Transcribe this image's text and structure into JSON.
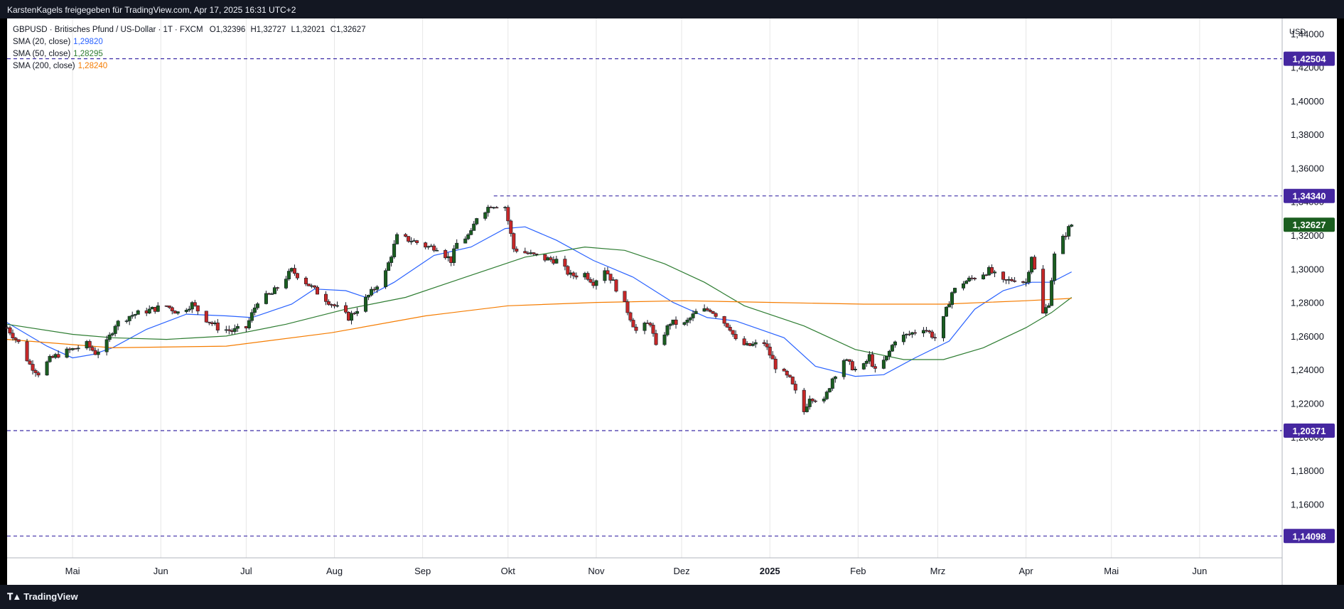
{
  "header": {
    "text": "KarstenKagels freigegeben für TradingView.com, Apr 17, 2025 16:31 UTC+2"
  },
  "legend": {
    "symbol": "GBPUSD · Britisches Pfund / US-Dollar · 1T · FXCM",
    "open": "O1,32396",
    "high": "H1,32727",
    "low": "L1,32021",
    "close": "C1,32627",
    "sma20_label": "SMA (20, close)",
    "sma20_value": "1,29820",
    "sma50_label": "SMA (50, close)",
    "sma50_value": "1,28295",
    "sma200_label": "SMA (200, close)",
    "sma200_value": "1,28240"
  },
  "footer": {
    "logo_text": "TradingView",
    "logo_icon": "tradingview-logo-icon"
  },
  "chart_data": {
    "type": "candlestick",
    "symbol": "GBPUSD",
    "interval": "1T",
    "y_unit": "USD",
    "ylim": [
      1.128,
      1.449
    ],
    "y_ticks": [
      "1,44000",
      "1,42000",
      "1,40000",
      "1,38000",
      "1,36000",
      "1,34000",
      "1,32000",
      "1,30000",
      "1,28000",
      "1,26000",
      "1,24000",
      "1,22000",
      "1,20000",
      "1,18000",
      "1,16000",
      "1,14000"
    ],
    "x_range": [
      "2024-04-08",
      "2025-06-30"
    ],
    "x_ticks": [
      {
        "label": "Mai",
        "date": "2024-05-01",
        "bold": false
      },
      {
        "label": "Jun",
        "date": "2024-06-01",
        "bold": false
      },
      {
        "label": "Jul",
        "date": "2024-07-01",
        "bold": false
      },
      {
        "label": "Aug",
        "date": "2024-08-01",
        "bold": false
      },
      {
        "label": "Sep",
        "date": "2024-09-01",
        "bold": false
      },
      {
        "label": "Okt",
        "date": "2024-10-01",
        "bold": false
      },
      {
        "label": "Nov",
        "date": "2024-11-01",
        "bold": false
      },
      {
        "label": "Dez",
        "date": "2024-12-01",
        "bold": false
      },
      {
        "label": "2025",
        "date": "2025-01-01",
        "bold": true
      },
      {
        "label": "Feb",
        "date": "2025-02-01",
        "bold": false
      },
      {
        "label": "Mrz",
        "date": "2025-03-01",
        "bold": false
      },
      {
        "label": "Apr",
        "date": "2025-04-01",
        "bold": false
      },
      {
        "label": "Mai",
        "date": "2025-05-01",
        "bold": false
      },
      {
        "label": "Jun",
        "date": "2025-06-01",
        "bold": false
      }
    ],
    "horizontal_lines": [
      {
        "value": 1.42504,
        "label": "1,42504",
        "start": "2024-04-08"
      },
      {
        "value": 1.3434,
        "label": "1,34340",
        "start": "2024-09-26"
      },
      {
        "value": 1.20371,
        "label": "1,20371",
        "start": "2024-04-08"
      },
      {
        "value": 1.14098,
        "label": "1,14098",
        "start": "2024-04-08"
      }
    ],
    "last_price": {
      "value": 1.32627,
      "label": "1,32627"
    },
    "close_series": [
      [
        "2024-04-08",
        1.265
      ],
      [
        "2024-04-12",
        1.256
      ],
      [
        "2024-04-16",
        1.243
      ],
      [
        "2024-04-19",
        1.238
      ],
      [
        "2024-04-23",
        1.246
      ],
      [
        "2024-04-26",
        1.249
      ],
      [
        "2024-05-01",
        1.252
      ],
      [
        "2024-05-06",
        1.255
      ],
      [
        "2024-05-09",
        1.25
      ],
      [
        "2024-05-13",
        1.256
      ],
      [
        "2024-05-16",
        1.267
      ],
      [
        "2024-05-21",
        1.272
      ],
      [
        "2024-05-27",
        1.275
      ],
      [
        "2024-06-03",
        1.278
      ],
      [
        "2024-06-07",
        1.274
      ],
      [
        "2024-06-12",
        1.279
      ],
      [
        "2024-06-17",
        1.27
      ],
      [
        "2024-06-21",
        1.265
      ],
      [
        "2024-06-26",
        1.263
      ],
      [
        "2024-07-01",
        1.265
      ],
      [
        "2024-07-05",
        1.281
      ],
      [
        "2024-07-10",
        1.285
      ],
      [
        "2024-07-17",
        1.299
      ],
      [
        "2024-07-22",
        1.292
      ],
      [
        "2024-07-26",
        1.286
      ],
      [
        "2024-08-01",
        1.278
      ],
      [
        "2024-08-06",
        1.271
      ],
      [
        "2024-08-09",
        1.276
      ],
      [
        "2024-08-14",
        1.286
      ],
      [
        "2024-08-19",
        1.298
      ],
      [
        "2024-08-23",
        1.319
      ],
      [
        "2024-08-28",
        1.317
      ],
      [
        "2024-09-03",
        1.313
      ],
      [
        "2024-09-06",
        1.313
      ],
      [
        "2024-09-11",
        1.305
      ],
      [
        "2024-09-13",
        1.315
      ],
      [
        "2024-09-18",
        1.321
      ],
      [
        "2024-09-20",
        1.331
      ],
      [
        "2024-09-25",
        1.338
      ],
      [
        "2024-09-27",
        1.338
      ],
      [
        "2024-09-30",
        1.337
      ],
      [
        "2024-10-03",
        1.312
      ],
      [
        "2024-10-08",
        1.309
      ],
      [
        "2024-10-14",
        1.306
      ],
      [
        "2024-10-18",
        1.305
      ],
      [
        "2024-10-23",
        1.296
      ],
      [
        "2024-10-28",
        1.297
      ],
      [
        "2024-10-31",
        1.292
      ],
      [
        "2024-11-04",
        1.3
      ],
      [
        "2024-11-07",
        1.292
      ],
      [
        "2024-11-12",
        1.275
      ],
      [
        "2024-11-15",
        1.263
      ],
      [
        "2024-11-20",
        1.268
      ],
      [
        "2024-11-22",
        1.253
      ],
      [
        "2024-11-27",
        1.268
      ],
      [
        "2024-12-02",
        1.267
      ],
      [
        "2024-12-06",
        1.274
      ],
      [
        "2024-12-11",
        1.276
      ],
      [
        "2024-12-13",
        1.273
      ],
      [
        "2024-12-18",
        1.265
      ],
      [
        "2024-12-20",
        1.257
      ],
      [
        "2024-12-24",
        1.254
      ],
      [
        "2024-12-30",
        1.256
      ],
      [
        "2025-01-03",
        1.242
      ],
      [
        "2025-01-08",
        1.234
      ],
      [
        "2025-01-13",
        1.215
      ],
      [
        "2025-01-15",
        1.224
      ],
      [
        "2025-01-20",
        1.221
      ],
      [
        "2025-01-23",
        1.235
      ],
      [
        "2025-01-27",
        1.246
      ],
      [
        "2025-01-31",
        1.24
      ],
      [
        "2025-02-03",
        1.242
      ],
      [
        "2025-02-05",
        1.248
      ],
      [
        "2025-02-07",
        1.239
      ],
      [
        "2025-02-11",
        1.247
      ],
      [
        "2025-02-14",
        1.258
      ],
      [
        "2025-02-19",
        1.261
      ],
      [
        "2025-02-24",
        1.265
      ],
      [
        "2025-02-28",
        1.259
      ],
      [
        "2025-03-03",
        1.27
      ],
      [
        "2025-03-06",
        1.286
      ],
      [
        "2025-03-10",
        1.292
      ],
      [
        "2025-03-14",
        1.295
      ],
      [
        "2025-03-19",
        1.299
      ],
      [
        "2025-03-24",
        1.292
      ],
      [
        "2025-03-28",
        1.294
      ],
      [
        "2025-04-01",
        1.292
      ],
      [
        "2025-04-03",
        1.308
      ],
      [
        "2025-04-07",
        1.273
      ],
      [
        "2025-04-09",
        1.28
      ],
      [
        "2025-04-11",
        1.308
      ],
      [
        "2025-04-14",
        1.318
      ],
      [
        "2025-04-16",
        1.324
      ],
      [
        "2025-04-17",
        1.3263
      ]
    ],
    "series": [
      {
        "name": "SMA (20, close)",
        "color": "#2962ff",
        "values": [
          [
            "2024-04-08",
            1.268
          ],
          [
            "2024-04-22",
            1.254
          ],
          [
            "2024-05-01",
            1.247
          ],
          [
            "2024-05-08",
            1.249
          ],
          [
            "2024-05-15",
            1.253
          ],
          [
            "2024-05-27",
            1.264
          ],
          [
            "2024-06-10",
            1.273
          ],
          [
            "2024-06-24",
            1.272
          ],
          [
            "2024-07-03",
            1.271
          ],
          [
            "2024-07-17",
            1.279
          ],
          [
            "2024-07-25",
            1.288
          ],
          [
            "2024-08-05",
            1.287
          ],
          [
            "2024-08-12",
            1.283
          ],
          [
            "2024-08-22",
            1.292
          ],
          [
            "2024-09-05",
            1.308
          ],
          [
            "2024-09-18",
            1.313
          ],
          [
            "2024-09-30",
            1.324
          ],
          [
            "2024-10-07",
            1.325
          ],
          [
            "2024-10-18",
            1.317
          ],
          [
            "2024-10-31",
            1.305
          ],
          [
            "2024-11-14",
            1.295
          ],
          [
            "2024-11-28",
            1.28
          ],
          [
            "2024-12-10",
            1.271
          ],
          [
            "2024-12-20",
            1.269
          ],
          [
            "2025-01-06",
            1.259
          ],
          [
            "2025-01-17",
            1.242
          ],
          [
            "2025-01-31",
            1.236
          ],
          [
            "2025-02-10",
            1.237
          ],
          [
            "2025-02-21",
            1.247
          ],
          [
            "2025-03-05",
            1.257
          ],
          [
            "2025-03-14",
            1.276
          ],
          [
            "2025-03-24",
            1.287
          ],
          [
            "2025-04-03",
            1.292
          ],
          [
            "2025-04-10",
            1.292
          ],
          [
            "2025-04-17",
            1.2982
          ]
        ]
      },
      {
        "name": "SMA (50, close)",
        "color": "#2e7d32",
        "values": [
          [
            "2024-04-08",
            1.267
          ],
          [
            "2024-05-01",
            1.261
          ],
          [
            "2024-05-15",
            1.259
          ],
          [
            "2024-06-03",
            1.258
          ],
          [
            "2024-06-24",
            1.26
          ],
          [
            "2024-07-15",
            1.267
          ],
          [
            "2024-08-05",
            1.276
          ],
          [
            "2024-08-26",
            1.283
          ],
          [
            "2024-09-16",
            1.295
          ],
          [
            "2024-10-07",
            1.307
          ],
          [
            "2024-10-28",
            1.313
          ],
          [
            "2024-11-11",
            1.311
          ],
          [
            "2024-11-25",
            1.303
          ],
          [
            "2024-12-09",
            1.292
          ],
          [
            "2024-12-23",
            1.278
          ],
          [
            "2025-01-13",
            1.266
          ],
          [
            "2025-01-31",
            1.252
          ],
          [
            "2025-02-17",
            1.246
          ],
          [
            "2025-03-03",
            1.246
          ],
          [
            "2025-03-17",
            1.253
          ],
          [
            "2025-04-01",
            1.265
          ],
          [
            "2025-04-10",
            1.274
          ],
          [
            "2025-04-17",
            1.283
          ]
        ]
      },
      {
        "name": "SMA (200, close)",
        "color": "#f57c00",
        "values": [
          [
            "2024-04-08",
            1.258
          ],
          [
            "2024-05-15",
            1.253
          ],
          [
            "2024-06-24",
            1.254
          ],
          [
            "2024-07-31",
            1.262
          ],
          [
            "2024-09-02",
            1.272
          ],
          [
            "2024-10-01",
            1.278
          ],
          [
            "2024-11-01",
            1.28
          ],
          [
            "2024-12-02",
            1.281
          ],
          [
            "2025-01-02",
            1.28
          ],
          [
            "2025-02-03",
            1.279
          ],
          [
            "2025-03-03",
            1.279
          ],
          [
            "2025-04-01",
            1.281
          ],
          [
            "2025-04-17",
            1.2824
          ]
        ]
      }
    ],
    "colors": {
      "up": "#1b5e20",
      "down": "#c62828",
      "wick": "#131722",
      "hline": "#3f2fa8",
      "label_bg": "#4527a0",
      "last_price_bg": "#1b5e20",
      "grid": "#e6e6e6"
    }
  }
}
